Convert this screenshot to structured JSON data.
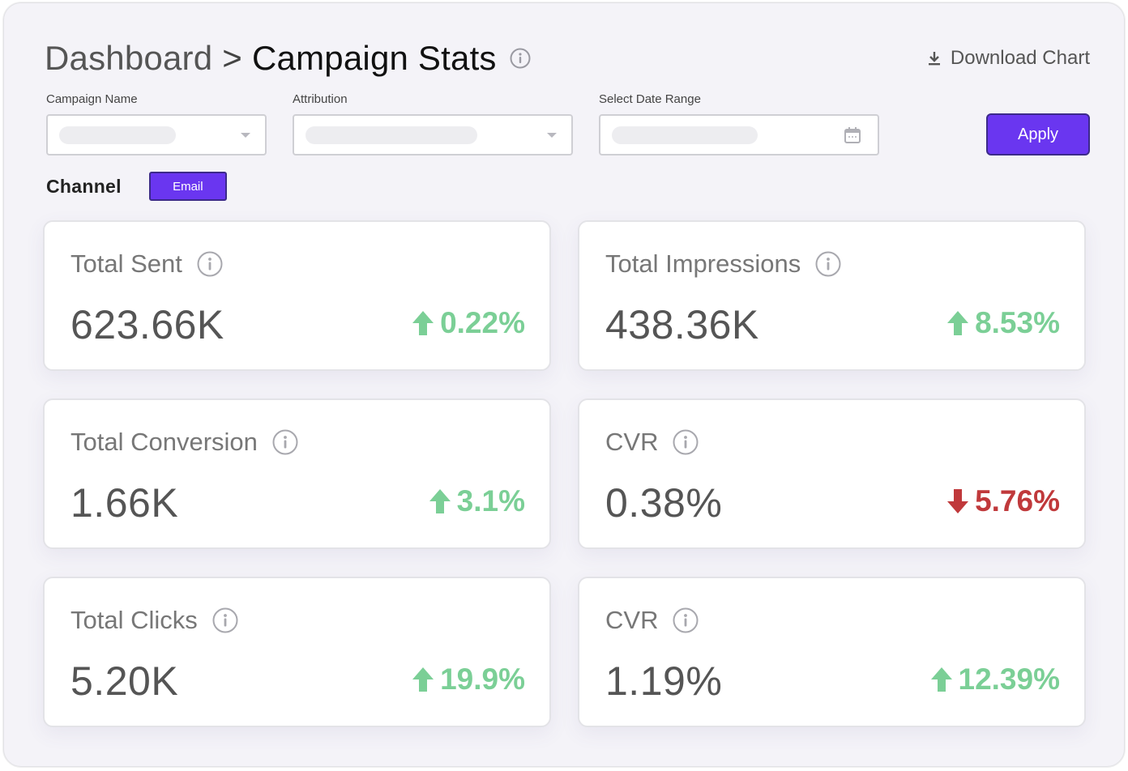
{
  "header": {
    "breadcrumb_parent": "Dashboard",
    "breadcrumb_separator": ">",
    "breadcrumb_current": "Campaign Stats",
    "download_label": "Download Chart"
  },
  "filters": {
    "campaign_name_label": "Campaign Name",
    "attribution_label": "Attribution",
    "date_range_label": "Select Date Range",
    "apply_label": "Apply"
  },
  "channel": {
    "label": "Channel",
    "selected": "Email"
  },
  "colors": {
    "accent": "#6a36f0",
    "positive": "#7bcf96",
    "negative": "#c0393b"
  },
  "cards": [
    {
      "title": "Total Sent",
      "value": "623.66K",
      "change": "0.22%",
      "direction": "up"
    },
    {
      "title": "Total Impressions",
      "value": "438.36K",
      "change": "8.53%",
      "direction": "up"
    },
    {
      "title": "Total Conversion",
      "value": "1.66K",
      "change": "3.1%",
      "direction": "up"
    },
    {
      "title": "CVR",
      "value": "0.38%",
      "change": "5.76%",
      "direction": "down"
    },
    {
      "title": "Total Clicks",
      "value": "5.20K",
      "change": "19.9%",
      "direction": "up"
    },
    {
      "title": "CVR",
      "value": "1.19%",
      "change": "12.39%",
      "direction": "up"
    }
  ]
}
